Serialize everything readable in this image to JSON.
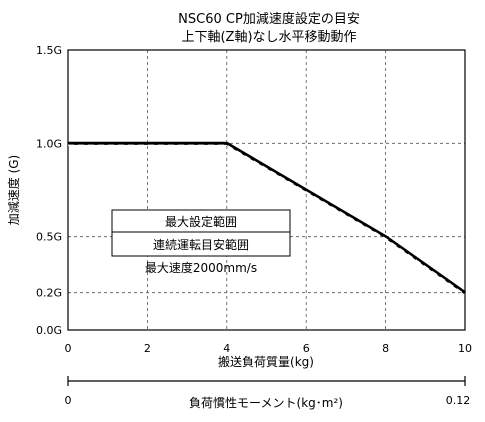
{
  "chart_data": {
    "type": "line",
    "title": "NSC60 CP加減速度設定の目安",
    "subtitle": "上下軸(Z軸)なし水平移動動作",
    "xlabel": "搬送負荷質量(kg)",
    "ylabel": "加減速度 (G)",
    "xlim": [
      0,
      10
    ],
    "ylim": [
      0,
      1.5
    ],
    "x_ticks": [
      0,
      2,
      4,
      6,
      8,
      10
    ],
    "x_tick_labels": [
      "0",
      "2",
      "4",
      "6",
      "8",
      "10"
    ],
    "y_ticks": [
      0,
      0.2,
      0.5,
      1.0,
      1.5
    ],
    "y_tick_labels": [
      "0.0G",
      "0.2G",
      "0.5G",
      "1.0G",
      "1.5G"
    ],
    "grid": true,
    "series": [
      {
        "name": "最大設定範囲",
        "style": "solid",
        "color": "#000000",
        "x": [
          0,
          4,
          8,
          10
        ],
        "y": [
          1.0,
          1.0,
          0.5,
          0.2
        ]
      },
      {
        "name": "連続運転目安範囲",
        "style": "dashed",
        "color": "#ffffff",
        "x": [
          0,
          4,
          8,
          10
        ],
        "y": [
          0.99,
          0.99,
          0.49,
          0.19
        ]
      }
    ],
    "legend": {
      "placement": "center-left",
      "entries": [
        "最大設定範囲",
        "連続運転目安範囲"
      ],
      "note": "最大速度2000mm/s"
    },
    "secondary_axis": {
      "label": "負荷慣性モーメント(kg･m²)",
      "min_label": "0",
      "max_label": "0.12"
    }
  }
}
